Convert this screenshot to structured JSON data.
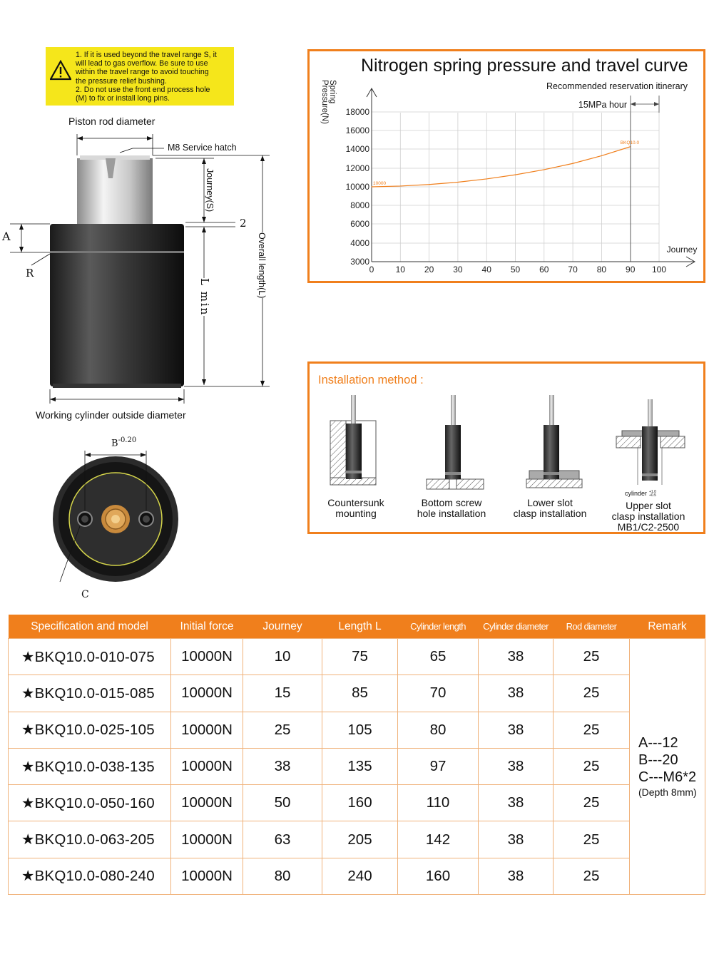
{
  "warning": {
    "icon": "warning-triangle-icon",
    "text": "1. If it is used beyond the travel range S, it\nwill lead to gas overflow. Be sure to use\nwithin the travel range to avoid touching\nthe pressure relief bushing.\n2. Do not use the front end process hole\n(M) to fix or install long pins."
  },
  "drawing": {
    "piston_rod_diameter": "Piston rod diameter",
    "service_hatch": "M8 Service hatch",
    "journey_s": "Journey(S)",
    "two": "2",
    "a": "A",
    "r": "R",
    "l_min": "L min",
    "overall_length": "Overall length(L)",
    "cylinder_od": "Working cylinder outside diameter",
    "b_tol": "B",
    "b_tol_sup": "-0.20",
    "c": "C"
  },
  "chart_data": {
    "type": "line",
    "title": "Nitrogen spring pressure and travel curve",
    "ylabel": "Spring Pressure(N)",
    "xlabel": "Journey",
    "annotation_top": "Recommended reservation itinerary",
    "annotation_mid": "15MPa hour",
    "x_ticks": [
      0,
      10,
      20,
      30,
      40,
      50,
      60,
      70,
      80,
      90,
      100
    ],
    "y_ticks": [
      3000,
      4000,
      6000,
      8000,
      10000,
      12000,
      14000,
      16000,
      18000
    ],
    "xlim": [
      0,
      100
    ],
    "ylim": [
      3000,
      18000
    ],
    "grid": true,
    "series": [
      {
        "name": "BKQ10.0",
        "color": "#f07f1c",
        "start_label": "10000",
        "x": [
          0,
          10,
          20,
          30,
          40,
          50,
          60,
          70,
          80,
          90
        ],
        "y": [
          10000,
          10080,
          10250,
          10500,
          10850,
          11300,
          11850,
          12500,
          13300,
          14250
        ]
      }
    ]
  },
  "install": {
    "title": "Installation method :",
    "items": [
      {
        "caption": "Countersunk\nmounting"
      },
      {
        "caption": "Bottom screw\nhole installation"
      },
      {
        "caption": "Lower slot\nclasp installation"
      },
      {
        "caption": "Upper slot\nclasp installation\nMB1/C2-2500",
        "note": "cylinder",
        "tol_top": "+1.0",
        "tol_bottom": "+0.5"
      }
    ]
  },
  "table": {
    "headers": [
      "Specification and model",
      "Initial force",
      "Journey",
      "Length L",
      "Cylinder length",
      "Cylinder diameter",
      "Rod diameter",
      "Remark"
    ],
    "rows": [
      [
        "★BKQ10.0-010-075",
        "10000N",
        "10",
        "75",
        "65",
        "38",
        "25"
      ],
      [
        "★BKQ10.0-015-085",
        "10000N",
        "15",
        "85",
        "70",
        "38",
        "25"
      ],
      [
        "★BKQ10.0-025-105",
        "10000N",
        "25",
        "105",
        "80",
        "38",
        "25"
      ],
      [
        "★BKQ10.0-038-135",
        "10000N",
        "38",
        "135",
        "97",
        "38",
        "25"
      ],
      [
        "★BKQ10.0-050-160",
        "10000N",
        "50",
        "160",
        "110",
        "38",
        "25"
      ],
      [
        "★BKQ10.0-063-205",
        "10000N",
        "63",
        "205",
        "142",
        "38",
        "25"
      ],
      [
        "★BKQ10.0-080-240",
        "10000N",
        "80",
        "240",
        "160",
        "38",
        "25"
      ]
    ],
    "remark": {
      "a": "A---12",
      "b": "B---20",
      "c": "C---M6*2",
      "depth": "(Depth 8mm)"
    }
  }
}
